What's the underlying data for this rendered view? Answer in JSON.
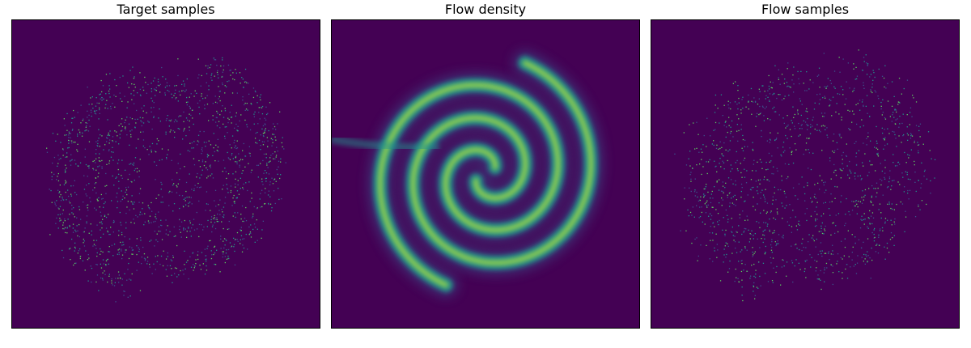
{
  "chart_data": [
    {
      "type": "heatmap",
      "title": "Target samples",
      "variant": "samples",
      "description_kind": "two-arm spiral scatter",
      "xlim": [
        -4,
        4
      ],
      "ylim": [
        -4,
        4
      ],
      "n_points": 1600,
      "arms": 2,
      "turns": 1.6,
      "noise": 0.22,
      "background_color": "#440154",
      "point_color": "#35b779",
      "colormap": "viridis",
      "axes_ticks": false
    },
    {
      "type": "heatmap",
      "title": "Flow density",
      "variant": "density",
      "xlim": [
        -4,
        4
      ],
      "ylim": [
        -4,
        4
      ],
      "arms": 2,
      "turns": 1.6,
      "background_color": "#440154",
      "colormap": "viridis",
      "colormap_stops": [
        "#440154",
        "#3b528b",
        "#21918c",
        "#5ec962",
        "#fde725"
      ],
      "axes_ticks": false
    },
    {
      "type": "heatmap",
      "title": "Flow samples",
      "variant": "samples",
      "xlim": [
        -4,
        4
      ],
      "ylim": [
        -4,
        4
      ],
      "n_points": 1400,
      "arms": 2,
      "turns": 1.6,
      "noise": 0.3,
      "background_color": "#440154",
      "point_color": "#35b779",
      "colormap": "viridis",
      "axes_ticks": false
    }
  ]
}
